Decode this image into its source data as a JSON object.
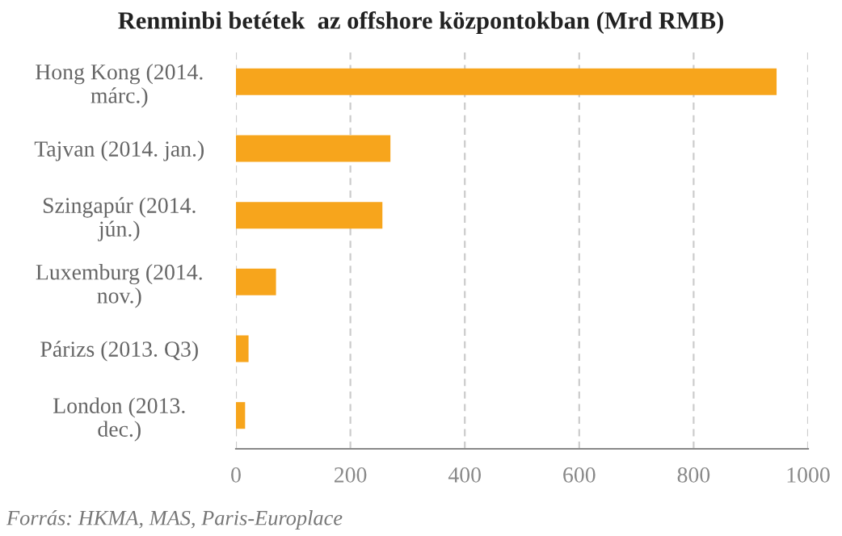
{
  "chart_data": {
    "type": "bar",
    "orientation": "horizontal",
    "title": "Renminbi betétek  az offshore központokban (Mrd RMB)",
    "categories": [
      "Hong Kong (2014.\nmárc.)",
      "Tajvan (2014. jan.)",
      "Szingapúr (2014.\njún.)",
      "Luxemburg (2014.\nnov.)",
      "Párizs (2013. Q3)",
      "London (2013.\ndec.)"
    ],
    "values": [
      945,
      270,
      256,
      70,
      22,
      16
    ],
    "color": "#f7a51c",
    "xlim": [
      0,
      1000
    ],
    "xticks": [
      0,
      200,
      400,
      600,
      800,
      1000
    ],
    "grid": "x",
    "annotations": [
      "Forrás: HKMA, MAS, Paris-Europlace"
    ]
  }
}
